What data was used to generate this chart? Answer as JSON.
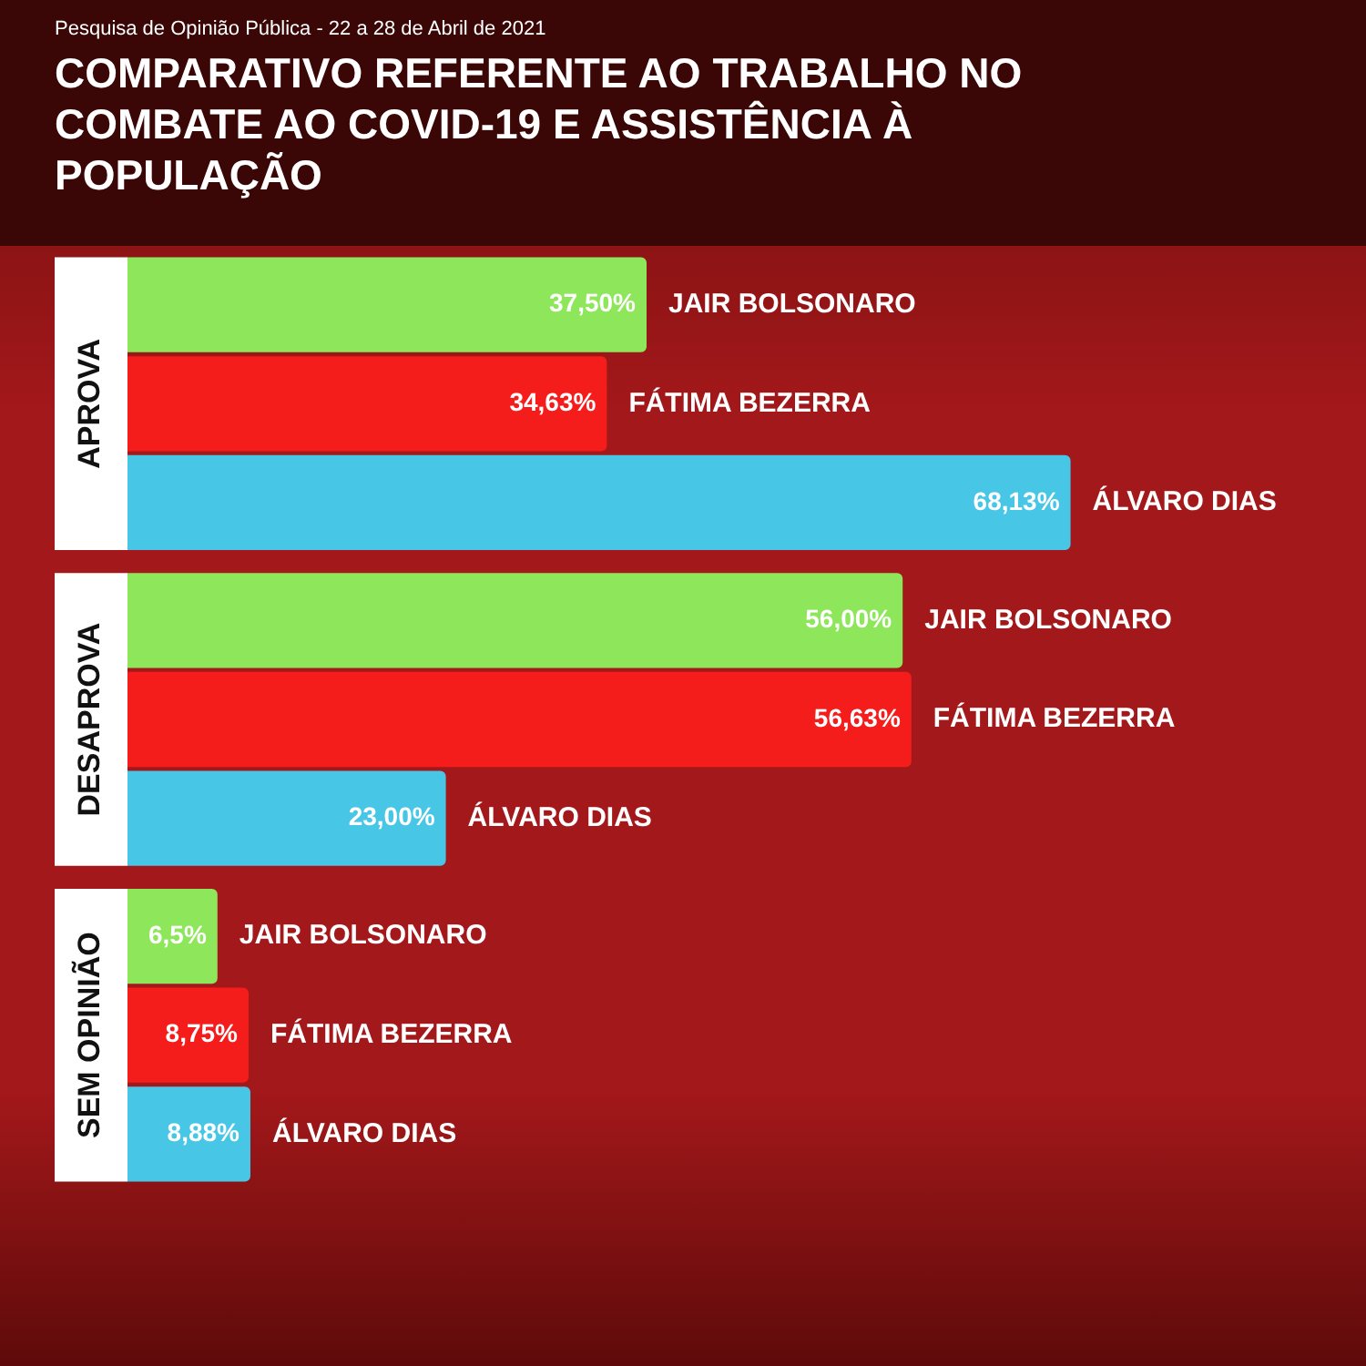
{
  "chart_data": {
    "type": "bar",
    "orientation": "horizontal",
    "title": "COMPARATIVO REFERENTE AO TRABALHO NO COMBATE AO COVID-19 E ASSISTÊNCIA À POPULAÇÃO",
    "subtitle": "Pesquisa de Opinião Pública - 22 a 28 de Abril de 2021",
    "categories": [
      "APROVA",
      "DESAPROVA",
      "SEM OPINIÃO"
    ],
    "tick_labels": false,
    "legend": false,
    "series": [
      {
        "name": "JAIR BOLSONARO",
        "color": "#8ee65a",
        "values": [
          37.5,
          56,
          6.5
        ],
        "value_labels": [
          "37,50%",
          "56,00%",
          "6,5%"
        ]
      },
      {
        "name": "FÁTIMA BEZERRA",
        "color": "#f51c1c",
        "values": [
          34.63,
          56.63,
          8.75
        ],
        "value_labels": [
          "34,63%",
          "56,63%",
          "8,75%"
        ]
      },
      {
        "name": "ÁLVARO DIAS",
        "color": "#48c6e6",
        "values": [
          68.13,
          23,
          8.88
        ],
        "value_labels": [
          "68,13%",
          "23,00%",
          "8,88%"
        ]
      }
    ]
  }
}
